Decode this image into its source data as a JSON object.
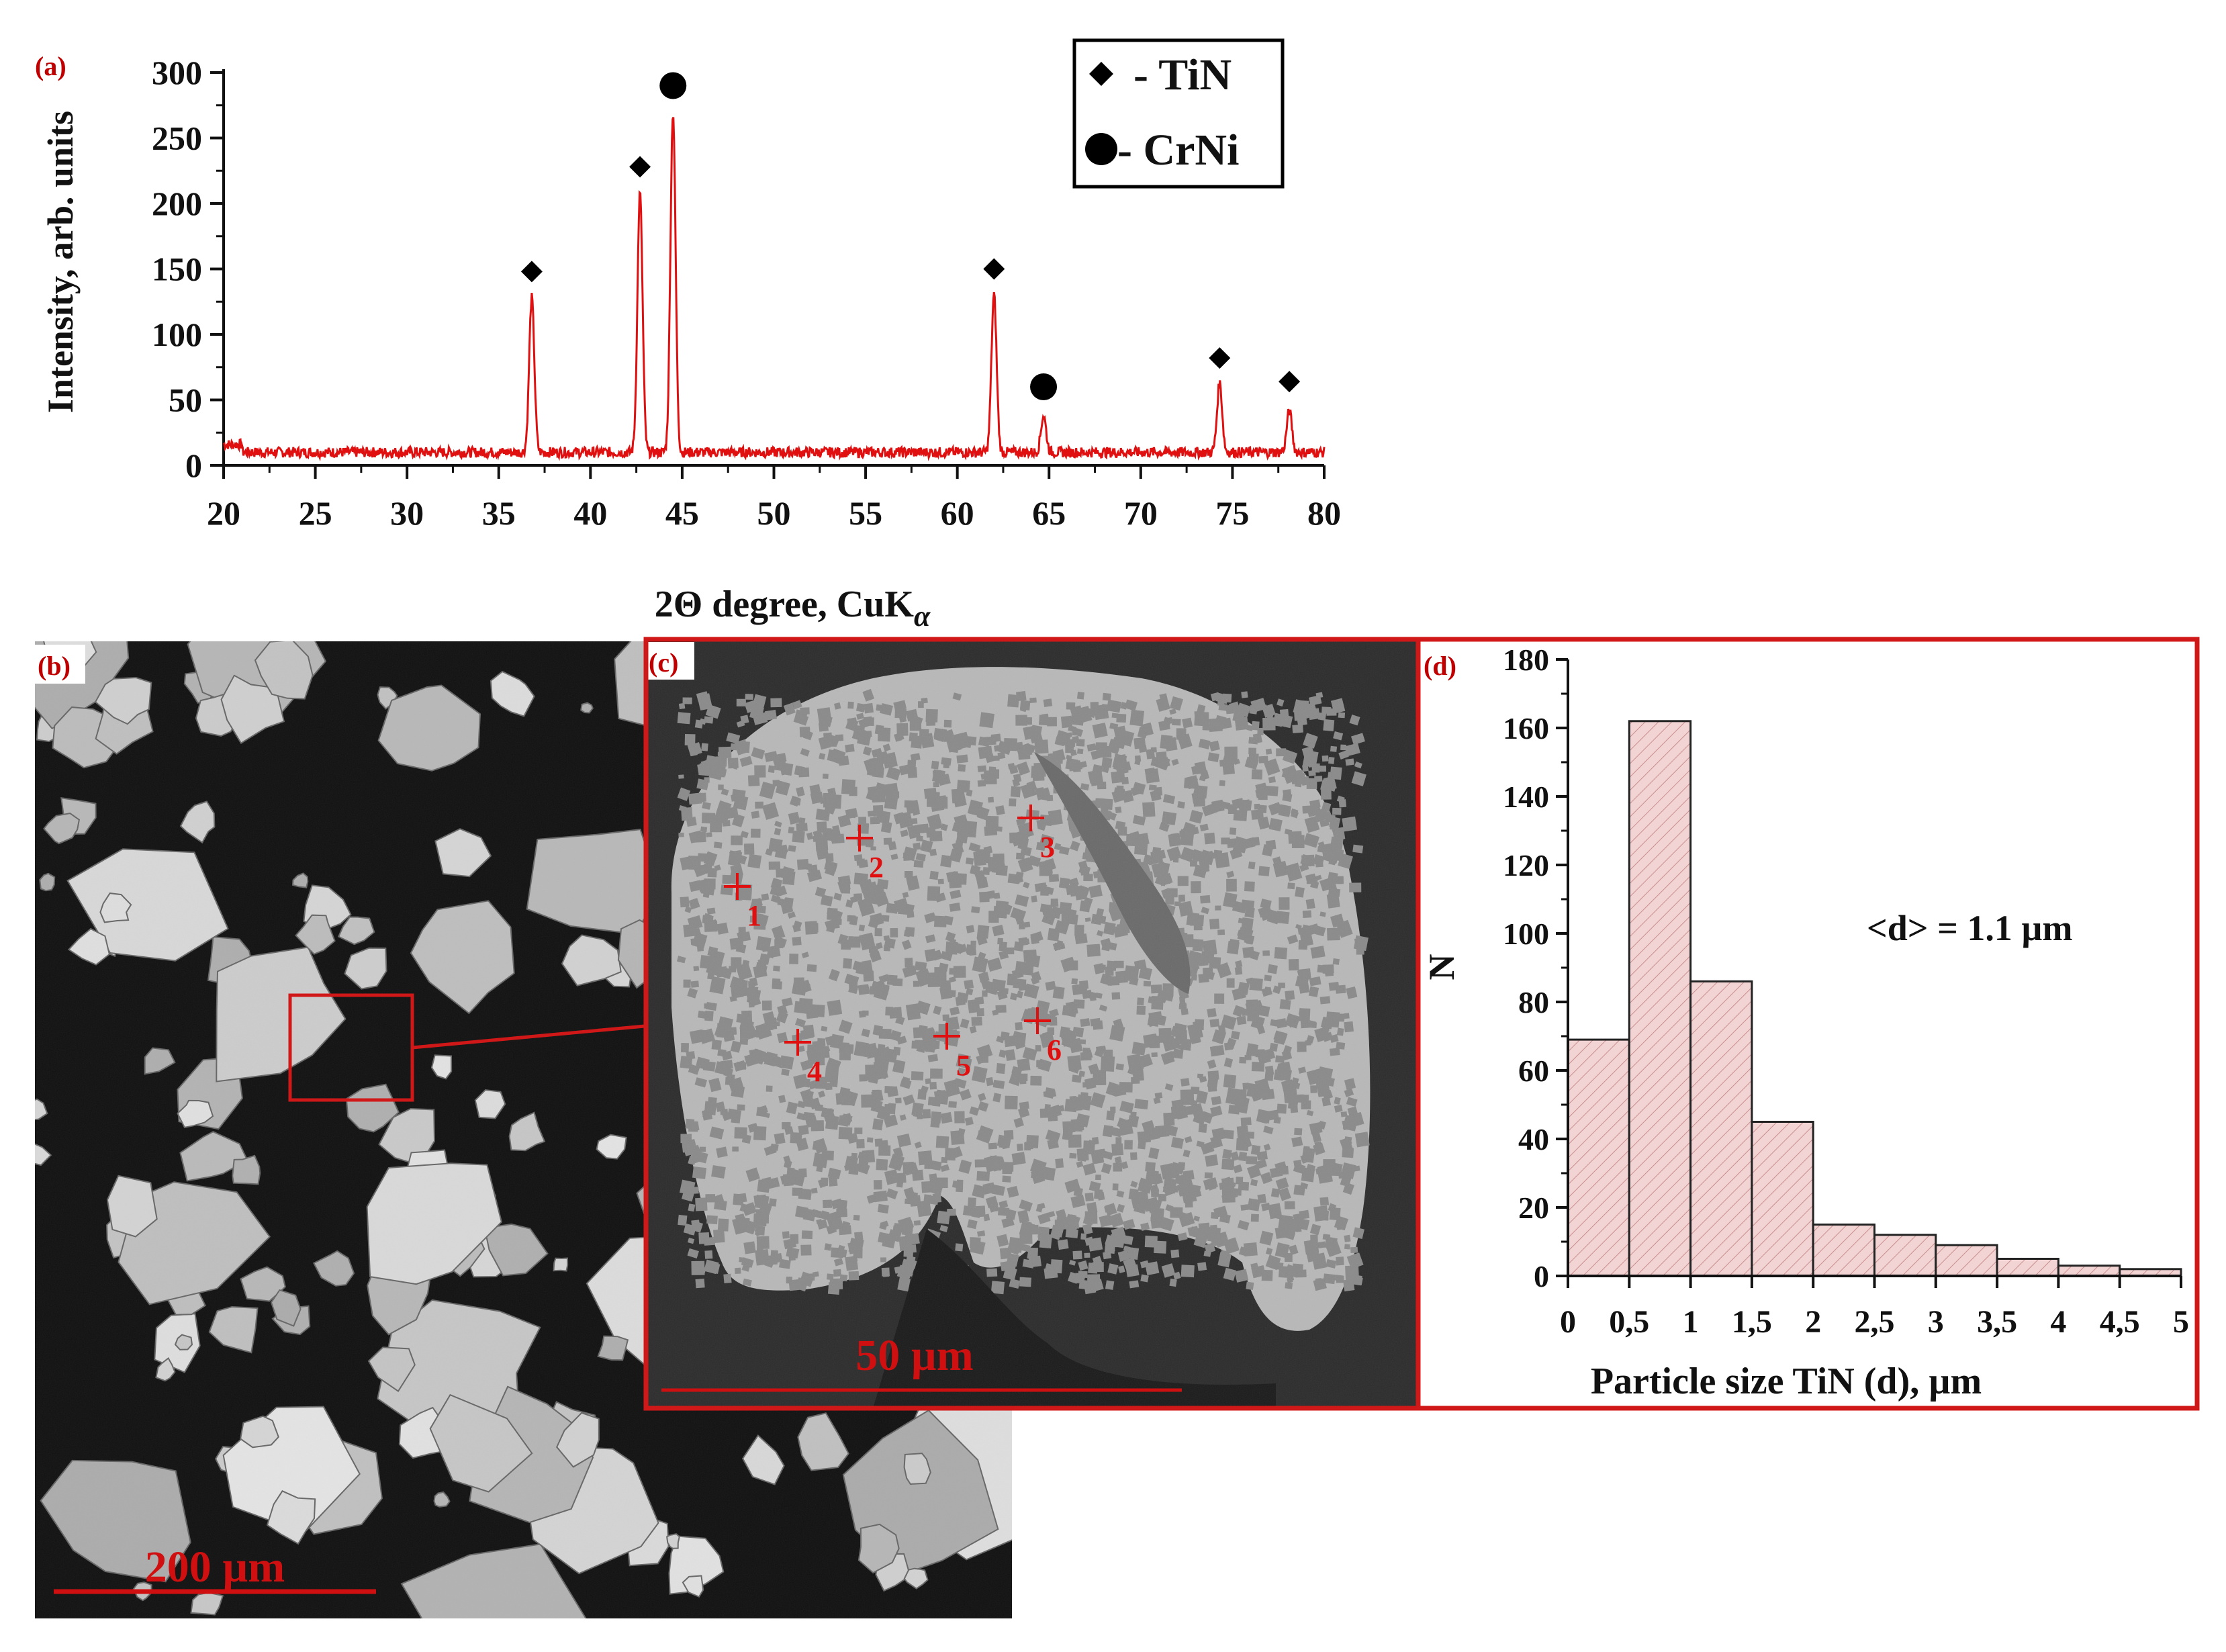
{
  "panels": {
    "a": "(a)",
    "b": "(b)",
    "c": "(c)",
    "d": "(d)"
  },
  "colors": {
    "xrd_line": "#e01010",
    "panel_label": "#c00000",
    "frame": "#d01818",
    "hist_fill": "#f2d4d4",
    "hist_hatch": "#c98f8f"
  },
  "chart_data": [
    {
      "type": "line",
      "panel": "(a)",
      "xlabel": "2Θ degree, CuK",
      "xlabel_sub": "α",
      "ylabel": "Intensity, arb. units",
      "xlim": [
        20,
        80
      ],
      "ylim": [
        0,
        300
      ],
      "xticks": [
        20,
        25,
        30,
        35,
        40,
        45,
        50,
        55,
        60,
        65,
        70,
        75,
        80
      ],
      "yticks": [
        0,
        50,
        100,
        150,
        200,
        250,
        300
      ],
      "baseline": 10,
      "peaks": [
        {
          "x": 36.8,
          "y": 128,
          "phase": "TiN"
        },
        {
          "x": 42.7,
          "y": 208,
          "phase": "TiN"
        },
        {
          "x": 44.5,
          "y": 270,
          "phase": "CrNi"
        },
        {
          "x": 62.0,
          "y": 130,
          "phase": "TiN"
        },
        {
          "x": 64.7,
          "y": 38,
          "phase": "CrNi"
        },
        {
          "x": 74.3,
          "y": 63,
          "phase": "TiN"
        },
        {
          "x": 78.1,
          "y": 42,
          "phase": "TiN"
        }
      ],
      "markers": [
        {
          "x": 36.8,
          "y": 148,
          "symbol": "diamond"
        },
        {
          "x": 42.7,
          "y": 228,
          "symbol": "diamond"
        },
        {
          "x": 44.5,
          "y": 290,
          "symbol": "circle"
        },
        {
          "x": 62.0,
          "y": 150,
          "symbol": "diamond"
        },
        {
          "x": 64.7,
          "y": 60,
          "symbol": "circle"
        },
        {
          "x": 74.3,
          "y": 82,
          "symbol": "diamond"
        },
        {
          "x": 78.1,
          "y": 64,
          "symbol": "diamond"
        }
      ],
      "legend": [
        {
          "symbol": "diamond",
          "label": "- TiN"
        },
        {
          "symbol": "circle",
          "label": "- CrNi"
        }
      ],
      "legend_position": "top-right"
    },
    {
      "type": "bar",
      "panel": "(d)",
      "xlabel": "Particle size TiN (d),  µm",
      "ylabel": "N",
      "xlim": [
        0,
        5
      ],
      "ylim": [
        0,
        180
      ],
      "xticks": [
        "0",
        "0,5",
        "1",
        "1,5",
        "2",
        "2,5",
        "3",
        "3,5",
        "4",
        "4,5",
        "5"
      ],
      "yticks": [
        0,
        20,
        40,
        60,
        80,
        100,
        120,
        140,
        160,
        180
      ],
      "bin_width": 0.5,
      "bin_starts": [
        0,
        0.5,
        1,
        1.5,
        2,
        2.5,
        3,
        3.5,
        4,
        4.5
      ],
      "values": [
        69,
        162,
        86,
        45,
        15,
        12,
        9,
        5,
        3,
        2
      ],
      "annotation": "<d> = 1.1 µm"
    }
  ],
  "micrograph_b": {
    "scale_label": "200 µm"
  },
  "micrograph_c": {
    "scale_label": "50 µm",
    "points": [
      "1",
      "2",
      "3",
      "4",
      "5",
      "6"
    ]
  }
}
